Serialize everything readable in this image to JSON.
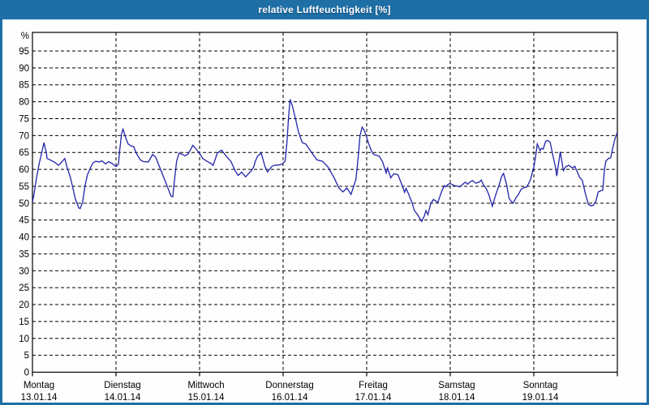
{
  "window": {
    "title": "relative Luftfeuchtigkeit [%]"
  },
  "colors": {
    "titlebar": "#1d6fa5",
    "window_border": "#1d6fa5",
    "plot_background": "#fdfefd",
    "line": "#2323ac",
    "grid": "#000000",
    "axis": "#000000",
    "label_text": "#000000"
  },
  "chart_data": {
    "type": "line",
    "title": "relative Luftfeuchtigkeit [%]",
    "ylabel": "%",
    "xlabel": "",
    "ylim": [
      0,
      100.5
    ],
    "xlim_hours": [
      0,
      168
    ],
    "grid": true,
    "grid_style": "dashed",
    "legend": "none",
    "yticks": [
      0,
      5,
      10,
      15,
      20,
      25,
      30,
      35,
      40,
      45,
      50,
      55,
      60,
      65,
      70,
      75,
      80,
      85,
      90,
      95
    ],
    "days": [
      {
        "name": "Montag",
        "date": "13.01.14"
      },
      {
        "name": "Dienstag",
        "date": "14.01.14"
      },
      {
        "name": "Mittwoch",
        "date": "15.01.14"
      },
      {
        "name": "Donnerstag",
        "date": "16.01.14"
      },
      {
        "name": "Freitag",
        "date": "17.01.14"
      },
      {
        "name": "Samstag",
        "date": "18.01.14"
      },
      {
        "name": "Sonntag",
        "date": "19.01.14"
      }
    ],
    "series": [
      {
        "name": "relative Luftfeuchtigkeit",
        "unit": "%",
        "points": [
          [
            0,
            50.3
          ],
          [
            0.5,
            52.9
          ],
          [
            1.2,
            57.6
          ],
          [
            1.9,
            61.6
          ],
          [
            2.8,
            65.5
          ],
          [
            3.3,
            67.9
          ],
          [
            4.0,
            64.8
          ],
          [
            4.2,
            63.2
          ],
          [
            5.1,
            62.8
          ],
          [
            5.8,
            62.4
          ],
          [
            6.5,
            62.0
          ],
          [
            7.5,
            61.2
          ],
          [
            8.6,
            62.4
          ],
          [
            9.3,
            63.2
          ],
          [
            10.0,
            60.4
          ],
          [
            10.9,
            57.6
          ],
          [
            11.6,
            54.5
          ],
          [
            12.3,
            51.3
          ],
          [
            13.3,
            48.6
          ],
          [
            13.7,
            48.4
          ],
          [
            14.4,
            50.2
          ],
          [
            15.1,
            55.2
          ],
          [
            15.8,
            58.4
          ],
          [
            16.8,
            60.8
          ],
          [
            17.5,
            62.0
          ],
          [
            18.2,
            62.4
          ],
          [
            19.1,
            62.2
          ],
          [
            20.0,
            62.5
          ],
          [
            21.0,
            61.6
          ],
          [
            21.9,
            62.3
          ],
          [
            22.8,
            61.8
          ],
          [
            24.0,
            60.8
          ],
          [
            24.7,
            61.5
          ],
          [
            25.1,
            66.0
          ],
          [
            25.6,
            70.5
          ],
          [
            26.0,
            71.9
          ],
          [
            26.3,
            71.0
          ],
          [
            26.8,
            69.3
          ],
          [
            27.5,
            67.5
          ],
          [
            28.4,
            66.9
          ],
          [
            29.1,
            66.7
          ],
          [
            29.8,
            64.8
          ],
          [
            31.0,
            62.8
          ],
          [
            31.9,
            62.3
          ],
          [
            33.3,
            62.2
          ],
          [
            34.5,
            64.4
          ],
          [
            35.4,
            63.6
          ],
          [
            36.8,
            60.0
          ],
          [
            38.0,
            56.8
          ],
          [
            38.9,
            54.5
          ],
          [
            39.8,
            52.1
          ],
          [
            40.3,
            51.9
          ],
          [
            40.7,
            56.0
          ],
          [
            41.4,
            62.4
          ],
          [
            42.1,
            64.8
          ],
          [
            43.1,
            64.4
          ],
          [
            43.8,
            64.0
          ],
          [
            44.7,
            64.5
          ],
          [
            46.1,
            67.1
          ],
          [
            47.0,
            66.0
          ],
          [
            47.9,
            64.9
          ],
          [
            48.9,
            63.2
          ],
          [
            50.1,
            62.4
          ],
          [
            51.2,
            61.8
          ],
          [
            51.9,
            61.2
          ],
          [
            53.1,
            64.8
          ],
          [
            54.3,
            65.7
          ],
          [
            55.9,
            63.6
          ],
          [
            57.0,
            62.4
          ],
          [
            58.2,
            59.6
          ],
          [
            59.1,
            58.2
          ],
          [
            60.1,
            59.2
          ],
          [
            61.2,
            57.8
          ],
          [
            62.9,
            59.6
          ],
          [
            63.6,
            60.8
          ],
          [
            64.0,
            62.4
          ],
          [
            64.7,
            64.0
          ],
          [
            65.7,
            64.8
          ],
          [
            66.8,
            60.8
          ],
          [
            67.5,
            59.2
          ],
          [
            68.7,
            60.8
          ],
          [
            69.4,
            61.2
          ],
          [
            70.8,
            61.3
          ],
          [
            71.8,
            61.6
          ],
          [
            72.6,
            62.5
          ],
          [
            73.1,
            68.0
          ],
          [
            73.6,
            76.0
          ],
          [
            74.0,
            80.7
          ],
          [
            74.7,
            78.6
          ],
          [
            75.7,
            74.3
          ],
          [
            76.4,
            71.1
          ],
          [
            77.5,
            67.9
          ],
          [
            78.5,
            67.5
          ],
          [
            79.6,
            65.9
          ],
          [
            80.3,
            64.8
          ],
          [
            81.7,
            62.8
          ],
          [
            83.3,
            62.4
          ],
          [
            84.8,
            60.8
          ],
          [
            86.6,
            57.6
          ],
          [
            88.0,
            54.5
          ],
          [
            89.2,
            53.3
          ],
          [
            90.3,
            54.5
          ],
          [
            91.5,
            52.6
          ],
          [
            92.9,
            57.0
          ],
          [
            93.6,
            64.0
          ],
          [
            94.1,
            70.0
          ],
          [
            94.7,
            72.5
          ],
          [
            95.2,
            71.7
          ],
          [
            95.9,
            69.8
          ],
          [
            96.6,
            67.5
          ],
          [
            97.3,
            65.6
          ],
          [
            98.0,
            64.4
          ],
          [
            99.6,
            63.9
          ],
          [
            100.6,
            62.2
          ],
          [
            101.6,
            58.9
          ],
          [
            102.0,
            60.4
          ],
          [
            102.9,
            57.5
          ],
          [
            103.8,
            58.7
          ],
          [
            105.0,
            58.4
          ],
          [
            106.2,
            55.2
          ],
          [
            106.9,
            53.2
          ],
          [
            107.3,
            54.4
          ],
          [
            108.0,
            52.8
          ],
          [
            109.0,
            50.2
          ],
          [
            109.7,
            47.8
          ],
          [
            110.6,
            46.6
          ],
          [
            111.8,
            44.6
          ],
          [
            112.6,
            46.3
          ],
          [
            113.0,
            47.8
          ],
          [
            113.6,
            46.6
          ],
          [
            114.4,
            49.9
          ],
          [
            115.2,
            51.1
          ],
          [
            116.4,
            50.2
          ],
          [
            117.6,
            53.6
          ],
          [
            118.3,
            55.2
          ],
          [
            118.7,
            54.8
          ],
          [
            119.4,
            55.6
          ],
          [
            120.0,
            55.8
          ],
          [
            121.1,
            55.2
          ],
          [
            122.2,
            55.0
          ],
          [
            122.7,
            54.8
          ],
          [
            123.4,
            55.4
          ],
          [
            124.3,
            56.2
          ],
          [
            125.0,
            55.6
          ],
          [
            125.7,
            56.3
          ],
          [
            126.4,
            56.7
          ],
          [
            127.3,
            55.9
          ],
          [
            128.3,
            56.2
          ],
          [
            128.9,
            56.8
          ],
          [
            129.6,
            55.3
          ],
          [
            130.3,
            54.4
          ],
          [
            131.1,
            52.5
          ],
          [
            132.1,
            49.1
          ],
          [
            133.0,
            52.3
          ],
          [
            133.9,
            55.0
          ],
          [
            134.8,
            58.0
          ],
          [
            135.3,
            58.8
          ],
          [
            136.2,
            55.5
          ],
          [
            136.9,
            51.5
          ],
          [
            137.6,
            50.4
          ],
          [
            138.1,
            50.0
          ],
          [
            138.8,
            51.5
          ],
          [
            139.6,
            52.6
          ],
          [
            140.3,
            54.0
          ],
          [
            141.1,
            54.6
          ],
          [
            142.0,
            54.8
          ],
          [
            143.0,
            56.8
          ],
          [
            143.5,
            58.8
          ],
          [
            144.1,
            61.0
          ],
          [
            144.6,
            64.5
          ],
          [
            145.0,
            67.5
          ],
          [
            145.8,
            65.5
          ],
          [
            146.2,
            66.2
          ],
          [
            146.7,
            66.0
          ],
          [
            147.4,
            68.3
          ],
          [
            148.0,
            68.6
          ],
          [
            148.7,
            68.0
          ],
          [
            149.5,
            64.0
          ],
          [
            150.2,
            60.8
          ],
          [
            150.6,
            58.0
          ],
          [
            151.6,
            65.2
          ],
          [
            152.5,
            59.6
          ],
          [
            153.2,
            60.8
          ],
          [
            154.1,
            61.2
          ],
          [
            155.1,
            60.4
          ],
          [
            155.8,
            60.9
          ],
          [
            157.2,
            57.6
          ],
          [
            157.9,
            56.8
          ],
          [
            158.8,
            52.9
          ],
          [
            159.7,
            49.6
          ],
          [
            160.5,
            49.2
          ],
          [
            161.1,
            49.4
          ],
          [
            161.8,
            50.5
          ],
          [
            162.5,
            53.3
          ],
          [
            163.3,
            53.7
          ],
          [
            163.8,
            53.8
          ],
          [
            164.3,
            60.0
          ],
          [
            164.7,
            62.4
          ],
          [
            165.4,
            63.2
          ],
          [
            166.1,
            63.4
          ],
          [
            166.7,
            66.4
          ],
          [
            167.3,
            69.0
          ],
          [
            168.0,
            71.0
          ]
        ]
      }
    ]
  }
}
